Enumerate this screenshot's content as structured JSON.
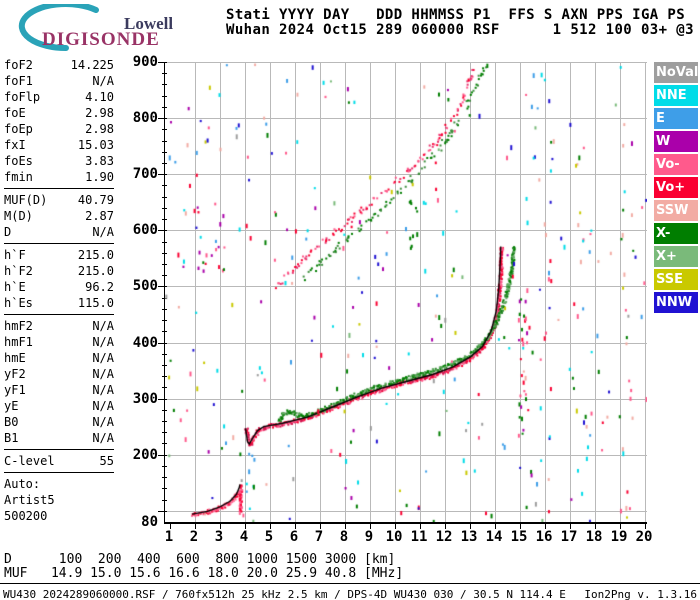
{
  "logo": {
    "line1": "Lowell",
    "line2": "DIGISONDE",
    "swoosh_color": "#2aa3b8"
  },
  "header": {
    "line1": "Stati YYYY DAY   DDD HHMMSS P1  FFS S AXN PPS IGA PS",
    "line2": "Wuhan 2024 Oct15 289 060000 RSF      1 512 100 03+ @3"
  },
  "params": {
    "groups": [
      {
        "rows": [
          {
            "label": "foF2",
            "value": "14.225"
          },
          {
            "label": "foF1",
            "value": "N/A"
          },
          {
            "label": "foFlp",
            "value": "4.10"
          },
          {
            "label": "foE",
            "value": "2.98"
          },
          {
            "label": "foEp",
            "value": "2.98"
          },
          {
            "label": "fxI",
            "value": "15.03"
          },
          {
            "label": "foEs",
            "value": "3.83"
          },
          {
            "label": "fmin",
            "value": "1.90"
          }
        ]
      },
      {
        "rows": [
          {
            "label": "MUF(D)",
            "value": "40.79"
          },
          {
            "label": "M(D)",
            "value": "2.87"
          },
          {
            "label": "D",
            "value": "N/A"
          }
        ]
      },
      {
        "rows": [
          {
            "label": "h`F",
            "value": "215.0"
          },
          {
            "label": "h`F2",
            "value": "215.0"
          },
          {
            "label": "h`E",
            "value": "96.2"
          },
          {
            "label": "h`Es",
            "value": "115.0"
          }
        ]
      },
      {
        "rows": [
          {
            "label": "hmF2",
            "value": "N/A"
          },
          {
            "label": "hmF1",
            "value": "N/A"
          },
          {
            "label": "hmE",
            "value": "N/A"
          },
          {
            "label": "yF2",
            "value": "N/A"
          },
          {
            "label": "yF1",
            "value": "N/A"
          },
          {
            "label": "yE",
            "value": "N/A"
          },
          {
            "label": "B0",
            "value": "N/A"
          },
          {
            "label": "B1",
            "value": "N/A"
          }
        ]
      },
      {
        "rows": [
          {
            "label": "C-level",
            "value": "55"
          }
        ]
      },
      {
        "rows": [
          {
            "label": "Auto:"
          },
          {
            "label": "Artist5"
          },
          {
            "label": "500200"
          }
        ]
      }
    ]
  },
  "legend": {
    "items": [
      {
        "label": "NoVal",
        "color": "#9e9e9e"
      },
      {
        "label": "NNE",
        "color": "#00dce8"
      },
      {
        "label": "E",
        "color": "#3e9ee8"
      },
      {
        "label": "W",
        "color": "#aa00aa"
      },
      {
        "label": "Vo-",
        "color": "#ff5a8c"
      },
      {
        "label": "Vo+",
        "color": "#fa0032"
      },
      {
        "label": "SSW",
        "color": "#f2aca4"
      },
      {
        "label": "X-",
        "color": "#007e00"
      },
      {
        "label": "X+",
        "color": "#7aba7a"
      },
      {
        "label": "SSE",
        "color": "#c9c900"
      },
      {
        "label": "NNW",
        "color": "#2012d2"
      }
    ]
  },
  "bottom": {
    "d": {
      "label": "D",
      "values": [
        "100",
        "200",
        "400",
        "600",
        "800",
        "1000",
        "1500",
        "3000"
      ],
      "unit": "[km]"
    },
    "muf": {
      "label": "MUF",
      "values": [
        "14.9",
        "15.0",
        "15.6",
        "16.6",
        "18.0",
        "20.0",
        "25.9",
        "40.8"
      ],
      "unit": "[MHz]"
    }
  },
  "footer": {
    "left": "WU430_2024289060000.RSF / 760fx512h 25 kHz 2.5 km / DPS-4D WU430 030 / 30.5 N 114.4 E",
    "right": "Ion2Png v. 1.3.16"
  },
  "chart_data": {
    "type": "scatter",
    "title": "Digisonde ionogram Wuhan 2024 Oct15 289 060000",
    "xlabel": "[MHz]",
    "ylabel": "[km]",
    "x_range": [
      1,
      20
    ],
    "y_range": [
      80,
      900
    ],
    "grid": true,
    "grid_color": "#b9b9b9",
    "legend_position": "right",
    "x_ticks": [
      1,
      2,
      3,
      4,
      5,
      6,
      7,
      8,
      9,
      10,
      11,
      12,
      13,
      14,
      15,
      16,
      17,
      18,
      19,
      20
    ],
    "y_grid": [
      100,
      200,
      300,
      400,
      500,
      600,
      700,
      800,
      900
    ],
    "y_tick_labels": [
      900,
      800,
      700,
      600,
      500,
      400,
      300,
      200,
      80
    ],
    "series": [
      {
        "name": "E-trace-O-mode",
        "colors": [
          "#ff5a8c",
          "#fa0032",
          "#ff7aa0"
        ],
        "density": 2,
        "jitter_x": 1.5,
        "jitter_y": 2,
        "sparse": 0,
        "points": [
          [
            1.88,
            95
          ],
          [
            2.15,
            96
          ],
          [
            2.45,
            99
          ],
          [
            2.75,
            103
          ],
          [
            3.05,
            108
          ],
          [
            3.3,
            114
          ],
          [
            3.5,
            121
          ],
          [
            3.65,
            130
          ],
          [
            3.74,
            139
          ]
        ]
      },
      {
        "name": "Es-spike",
        "colors": [
          "#ff5a8c",
          "#fa0032"
        ],
        "density": 2,
        "jitter_x": 1.2,
        "jitter_y": 1.5,
        "sparse": 0,
        "points": [
          [
            3.78,
            98
          ],
          [
            3.81,
            147
          ]
        ]
      },
      {
        "name": "F-trace-O-mode",
        "colors": [
          "#fa0032",
          "#ff5a8c",
          "#d4154f"
        ],
        "density": 2,
        "jitter_x": 1.5,
        "jitter_y": 2,
        "sparse": 0,
        "points": [
          [
            4.02,
            248
          ],
          [
            4.06,
            234
          ],
          [
            4.1,
            224
          ],
          [
            4.16,
            220
          ],
          [
            4.24,
            224
          ],
          [
            4.34,
            233
          ],
          [
            4.46,
            242
          ],
          [
            4.62,
            248
          ],
          [
            4.9,
            252
          ],
          [
            5.3,
            255
          ],
          [
            5.8,
            259
          ],
          [
            6.3,
            265
          ],
          [
            6.8,
            273
          ],
          [
            7.3,
            282
          ],
          [
            7.8,
            291
          ],
          [
            8.3,
            300
          ],
          [
            8.8,
            309
          ],
          [
            9.3,
            316
          ],
          [
            9.8,
            323
          ],
          [
            10.3,
            329
          ],
          [
            10.8,
            334
          ],
          [
            11.3,
            340
          ],
          [
            11.8,
            347
          ],
          [
            12.3,
            356
          ],
          [
            12.7,
            365
          ],
          [
            13.1,
            377
          ],
          [
            13.45,
            391
          ],
          [
            13.7,
            407
          ],
          [
            13.9,
            427
          ],
          [
            14.05,
            453
          ],
          [
            14.14,
            487
          ],
          [
            14.2,
            529
          ],
          [
            14.23,
            572
          ]
        ]
      },
      {
        "name": "F-trace-X-mode",
        "colors": [
          "#007e00",
          "#2e8b2e",
          "#66aa66"
        ],
        "density": 2,
        "jitter_x": 1.5,
        "jitter_y": 2,
        "sparse": 0.1,
        "points": [
          [
            5.3,
            260
          ],
          [
            5.42,
            268
          ],
          [
            5.55,
            275
          ],
          [
            5.72,
            279
          ],
          [
            5.9,
            277
          ],
          [
            6.1,
            272
          ],
          [
            6.4,
            271
          ],
          [
            6.8,
            277
          ],
          [
            7.3,
            286
          ],
          [
            7.8,
            296
          ],
          [
            8.3,
            306
          ],
          [
            8.8,
            315
          ],
          [
            9.3,
            323
          ],
          [
            9.8,
            330
          ],
          [
            10.3,
            336
          ],
          [
            10.8,
            342
          ],
          [
            11.3,
            348
          ],
          [
            11.8,
            355
          ],
          [
            12.3,
            364
          ],
          [
            12.75,
            374
          ],
          [
            13.15,
            386
          ],
          [
            13.5,
            401
          ],
          [
            13.8,
            419
          ],
          [
            14.05,
            441
          ],
          [
            14.3,
            468
          ],
          [
            14.5,
            500
          ],
          [
            14.65,
            538
          ],
          [
            14.74,
            573
          ]
        ]
      },
      {
        "name": "second-hop-O-mode",
        "colors": [
          "#ff5a8c",
          "#e8336e",
          "#fa0032"
        ],
        "density": 1,
        "jitter_x": 2,
        "jitter_y": 3,
        "sparse": 0.55,
        "points": [
          [
            5.15,
            498
          ],
          [
            5.6,
            518
          ],
          [
            6.1,
            540
          ],
          [
            6.6,
            561
          ],
          [
            7.1,
            581
          ],
          [
            7.6,
            600
          ],
          [
            8.1,
            618
          ],
          [
            8.6,
            636
          ],
          [
            9.1,
            654
          ],
          [
            9.6,
            672
          ],
          [
            10.1,
            692
          ],
          [
            10.6,
            712
          ],
          [
            11.1,
            734
          ],
          [
            11.6,
            758
          ],
          [
            12.0,
            782
          ],
          [
            12.4,
            808
          ],
          [
            12.7,
            835
          ],
          [
            12.95,
            866
          ],
          [
            13.1,
            893
          ]
        ]
      },
      {
        "name": "second-hop-X-mode",
        "colors": [
          "#007e00",
          "#3e8e3e"
        ],
        "density": 1,
        "jitter_x": 2,
        "jitter_y": 3,
        "sparse": 0.55,
        "points": [
          [
            6.25,
            512
          ],
          [
            6.75,
            533
          ],
          [
            7.25,
            553
          ],
          [
            7.75,
            573
          ],
          [
            8.25,
            593
          ],
          [
            8.75,
            613
          ],
          [
            9.25,
            633
          ],
          [
            9.75,
            654
          ],
          [
            10.25,
            676
          ],
          [
            10.75,
            699
          ],
          [
            11.25,
            723
          ],
          [
            11.75,
            749
          ],
          [
            12.15,
            774
          ],
          [
            12.55,
            802
          ],
          [
            12.95,
            834
          ],
          [
            13.35,
            870
          ],
          [
            13.6,
            896
          ]
        ]
      }
    ],
    "fit_lines": [
      {
        "name": "artist-fit-E",
        "color": "#000000",
        "points": [
          [
            1.88,
            94
          ],
          [
            2.5,
            99
          ],
          [
            3.0,
            107
          ],
          [
            3.4,
            117
          ],
          [
            3.65,
            129
          ],
          [
            3.76,
            140
          ],
          [
            3.8,
            147
          ]
        ]
      },
      {
        "name": "artist-fit-F",
        "color": "#000000",
        "points": [
          [
            4.02,
            247
          ],
          [
            4.1,
            223
          ],
          [
            4.17,
            219
          ],
          [
            4.3,
            229
          ],
          [
            4.5,
            243
          ],
          [
            4.75,
            250
          ],
          [
            5.5,
            256
          ],
          [
            6.5,
            267
          ],
          [
            7.5,
            285
          ],
          [
            8.5,
            303
          ],
          [
            9.5,
            319
          ],
          [
            10.5,
            331
          ],
          [
            11.5,
            343
          ],
          [
            12.3,
            356
          ],
          [
            13.0,
            374
          ],
          [
            13.5,
            393
          ],
          [
            13.85,
            421
          ],
          [
            14.05,
            456
          ],
          [
            14.15,
            497
          ],
          [
            14.21,
            547
          ],
          [
            14.23,
            571
          ]
        ]
      }
    ],
    "clusters": [
      {
        "f": [
          14.9,
          15.35
        ],
        "h": [
          235,
          515
        ],
        "n": 30,
        "colors": [
          "#fa0032",
          "#007e00",
          "#aa00aa",
          "#ff5a8c"
        ]
      },
      {
        "f": [
          10.55,
          10.85
        ],
        "h": [
          535,
          655
        ],
        "n": 10,
        "colors": [
          "#007e00"
        ]
      },
      {
        "f": [
          19.0,
          19.55
        ],
        "h": [
          100,
          860
        ],
        "n": 18,
        "colors": [
          "#ff5a8c",
          "#f2aca4",
          "#c9c900",
          "#00dce8",
          "#007e00"
        ]
      },
      {
        "f": [
          17.25,
          17.85
        ],
        "h": [
          130,
          720
        ],
        "n": 12,
        "colors": [
          "#f2aca4",
          "#ff5a8c",
          "#00dce8",
          "#007e00"
        ]
      },
      {
        "f": [
          4.0,
          4.4
        ],
        "h": [
          85,
          205
        ],
        "n": 8,
        "colors": [
          "#00dce8",
          "#3e9ee8"
        ]
      },
      {
        "f": [
          1.9,
          3.4
        ],
        "h": [
          520,
          645
        ],
        "n": 14,
        "colors": [
          "#ff5a8c",
          "#aa00aa",
          "#fa0032"
        ]
      },
      {
        "f": [
          15.5,
          16.3
        ],
        "h": [
          100,
          760
        ],
        "n": 12,
        "colors": [
          "#00dce8",
          "#fa0032",
          "#f2aca4",
          "#2012d2"
        ]
      }
    ],
    "noise": {
      "seed": 1337,
      "count": 300,
      "palette": [
        [
          "#00dce8",
          3
        ],
        [
          "#3e9ee8",
          2
        ],
        [
          "#2012d2",
          2
        ],
        [
          "#aa00aa",
          2
        ],
        [
          "#ff5a8c",
          2
        ],
        [
          "#fa0032",
          2
        ],
        [
          "#f2aca4",
          2
        ],
        [
          "#007e00",
          3
        ],
        [
          "#7aba7a",
          1
        ],
        [
          "#c9c900",
          2
        ],
        [
          "#9e9e9e",
          1
        ]
      ]
    }
  }
}
